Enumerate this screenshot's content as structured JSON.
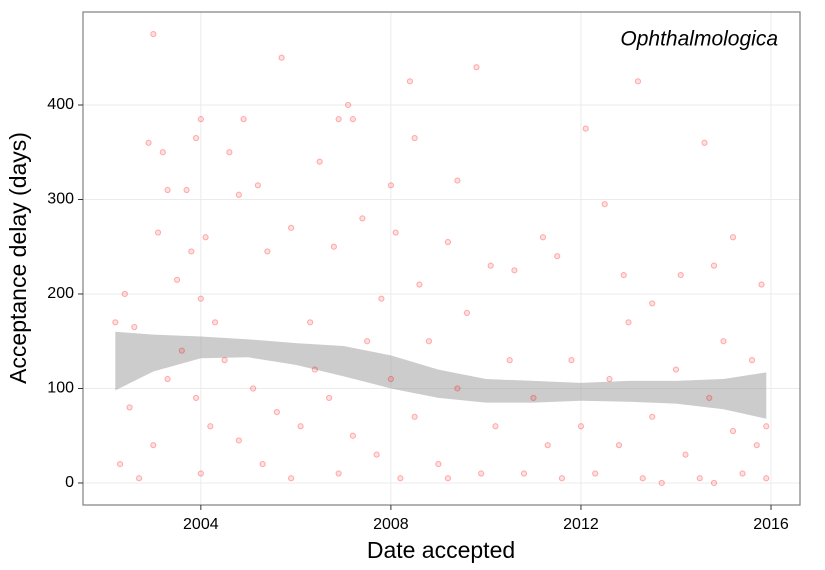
{
  "chart_data": {
    "type": "scatter",
    "annotation": "Ophthalmologica",
    "x_label": "Date accepted",
    "y_label": "Acceptance delay (days)",
    "xlim": [
      2001.52,
      2016.61
    ],
    "ylim": [
      -23.3,
      498.4
    ],
    "xticks": [
      2004,
      2008,
      2012,
      2016
    ],
    "yticks": [
      0,
      100,
      200,
      300,
      400
    ],
    "grid": true,
    "color": "#ff0000",
    "x": [
      2002.2,
      2002.4,
      2002.3,
      2002.6,
      2002.9,
      2003.0,
      2003.2,
      2003.1,
      2003.3,
      2003.5,
      2003.7,
      2003.8,
      2003.9,
      2004.0,
      2004.0,
      2004.1,
      2004.3,
      2004.6,
      2004.8,
      2004.9,
      2005.2,
      2005.4,
      2005.7,
      2005.9,
      2006.3,
      2006.5,
      2006.8,
      2006.9,
      2007.1,
      2007.2,
      2007.4,
      2007.8,
      2008.0,
      2008.1,
      2008.4,
      2008.5,
      2008.6,
      2009.2,
      2009.4,
      2009.8,
      2010.1,
      2010.6,
      2011.2,
      2011.5,
      2012.1,
      2012.5,
      2012.9,
      2013.2,
      2013.5,
      2014.1,
      2014.6,
      2014.8,
      2015.2,
      2015.8,
      2002.5,
      2002.7,
      2003.0,
      2003.3,
      2003.6,
      2003.9,
      2004.0,
      2004.2,
      2004.5,
      2004.8,
      2005.1,
      2005.3,
      2005.6,
      2005.9,
      2006.1,
      2006.4,
      2006.7,
      2006.9,
      2007.2,
      2007.5,
      2007.7,
      2008.0,
      2008.2,
      2008.5,
      2008.8,
      2009.0,
      2009.2,
      2009.4,
      2009.6,
      2009.9,
      2010.2,
      2010.5,
      2010.8,
      2011.0,
      2011.3,
      2011.6,
      2011.8,
      2012.0,
      2012.3,
      2012.6,
      2012.8,
      2013.0,
      2013.3,
      2013.5,
      2013.7,
      2014.0,
      2014.2,
      2014.5,
      2014.7,
      2014.8,
      2015.0,
      2015.2,
      2015.4,
      2015.6,
      2015.7,
      2015.9,
      2015.9
    ],
    "y": [
      170,
      200,
      20,
      165,
      360,
      475,
      350,
      265,
      310,
      215,
      310,
      245,
      365,
      385,
      195,
      260,
      170,
      350,
      305,
      385,
      315,
      245,
      450,
      270,
      170,
      340,
      250,
      385,
      400,
      385,
      280,
      195,
      315,
      265,
      425,
      365,
      210,
      255,
      320,
      440,
      230,
      225,
      260,
      240,
      375,
      295,
      220,
      425,
      190,
      220,
      360,
      230,
      260,
      210,
      80,
      5,
      40,
      110,
      140,
      90,
      10,
      60,
      130,
      45,
      100,
      20,
      75,
      5,
      60,
      120,
      90,
      10,
      50,
      150,
      30,
      110,
      5,
      70,
      150,
      20,
      5,
      100,
      180,
      10,
      60,
      130,
      10,
      90,
      40,
      5,
      130,
      60,
      10,
      110,
      40,
      170,
      5,
      70,
      0,
      120,
      30,
      5,
      90,
      0,
      150,
      55,
      10,
      130,
      40,
      5,
      60
    ],
    "band": {
      "x": [
        2002.2,
        2003,
        2004,
        2005,
        2006,
        2007,
        2008,
        2009,
        2010,
        2011,
        2012,
        2013,
        2014,
        2015,
        2015.9
      ],
      "lower": [
        98,
        118,
        132,
        133,
        125,
        113,
        100,
        90,
        85,
        85,
        87,
        86,
        84,
        78,
        68
      ],
      "upper": [
        160,
        157,
        155,
        152,
        148,
        145,
        135,
        120,
        110,
        108,
        106,
        108,
        108,
        110,
        117
      ],
      "color": "#999999"
    }
  }
}
